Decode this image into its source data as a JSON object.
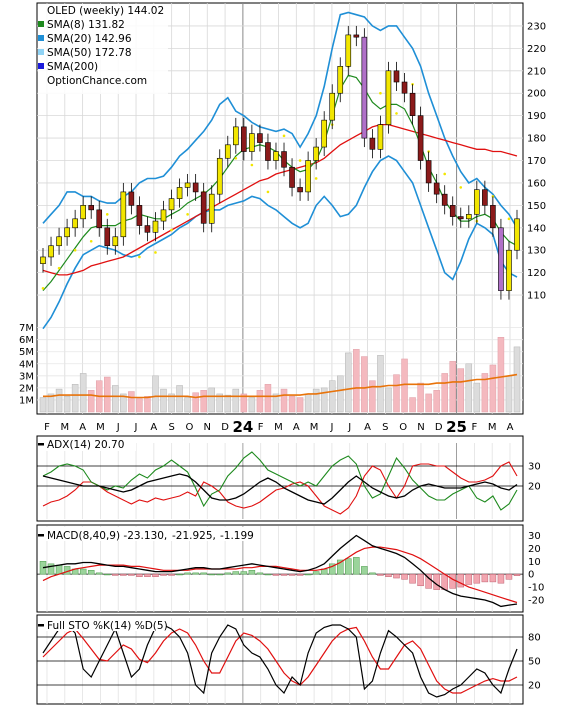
{
  "title": "OLED (weekly) 144.02",
  "legend": [
    {
      "label": "SMA(8) 131.82",
      "color": "#1e8a1e"
    },
    {
      "label": "SMA(20) 142.96",
      "color": "#1f8fd6"
    },
    {
      "label": "SMA(50) 172.78",
      "color": "#8fd3f5"
    },
    {
      "label": "SMA(200)",
      "color": "#1a1adb"
    }
  ],
  "source": "OptionChance.com",
  "colors": {
    "up": "#f2e600",
    "down": "#8b1a1a",
    "bb": "#1f8fd6",
    "sma8": "#1e8a1e",
    "sma40": "#e01010",
    "vol": "#f4b9bf",
    "vol_ma": "#e8730a",
    "psar": "#f2e600",
    "bear_candle": "#b070c8"
  },
  "chart_data": [
    {
      "type": "candlestick",
      "title": "OLED (weekly) 144.02",
      "x_tick_labels": [
        "F",
        "M",
        "A",
        "M",
        "J",
        "J",
        "A",
        "S",
        "O",
        "N",
        "D",
        "24",
        "F",
        "M",
        "A",
        "M",
        "J",
        "J",
        "A",
        "S",
        "O",
        "N",
        "D",
        "25",
        "F",
        "M",
        "A"
      ],
      "price_ticks": [
        110,
        120,
        130,
        140,
        150,
        160,
        170,
        180,
        190,
        200,
        210,
        220,
        230
      ],
      "ylim": [
        98,
        238
      ],
      "close": [
        127,
        132,
        136,
        140,
        144,
        150,
        148,
        140,
        132,
        136,
        156,
        150,
        141,
        138,
        143,
        148,
        153,
        158,
        160,
        156,
        142,
        155,
        171,
        177,
        185,
        174,
        182,
        178,
        170,
        174,
        167,
        158,
        156,
        170,
        176,
        188,
        200,
        212,
        226,
        225,
        180,
        175,
        186,
        210,
        205,
        200,
        190,
        170,
        160,
        155,
        150,
        145,
        144,
        146,
        157,
        150,
        140,
        112,
        130,
        144
      ],
      "sma8": [
        112,
        116,
        121,
        126,
        131,
        136,
        140,
        141,
        141,
        141,
        143,
        144,
        146,
        145,
        144,
        144,
        146,
        148,
        151,
        153,
        155,
        158,
        162,
        167,
        172,
        175,
        176,
        177,
        176,
        174,
        170,
        167,
        165,
        166,
        170,
        178,
        190,
        202,
        208,
        207,
        202,
        196,
        193,
        195,
        195,
        193,
        186,
        177,
        167,
        160,
        152,
        147,
        143,
        143,
        145,
        146,
        144,
        138,
        134,
        132
      ],
      "sma20": [
        131,
        133,
        135,
        137,
        140,
        142,
        143,
        142,
        141,
        140,
        140,
        140,
        140,
        141,
        142,
        143,
        145,
        147,
        150,
        153,
        156,
        158,
        161,
        163,
        165,
        167,
        168,
        169,
        170,
        170,
        170,
        169,
        168,
        168,
        170,
        174,
        180,
        186,
        192,
        196,
        199,
        201,
        202,
        202,
        200,
        197,
        193,
        188,
        183,
        178,
        172,
        166,
        160,
        155,
        150,
        147,
        145,
        144,
        143,
        143
      ],
      "sma40": [
        121,
        120,
        119,
        119,
        120,
        121,
        123,
        124,
        125,
        126,
        127,
        129,
        131,
        133,
        135,
        137,
        139,
        141,
        143,
        145,
        147,
        149,
        151,
        153,
        155,
        157,
        159,
        161,
        162,
        164,
        165,
        166,
        167,
        168,
        169,
        171,
        174,
        177,
        179,
        181,
        183,
        185,
        186,
        186,
        185,
        184,
        183,
        182,
        181,
        180,
        179,
        178,
        177,
        176,
        175,
        175,
        174,
        174,
        173,
        172
      ],
      "bb_upper": [
        142,
        146,
        150,
        156,
        156,
        154,
        154,
        152,
        151,
        151,
        154,
        156,
        160,
        162,
        162,
        163,
        167,
        172,
        175,
        179,
        183,
        188,
        195,
        198,
        192,
        190,
        187,
        185,
        184,
        183,
        184,
        182,
        176,
        182,
        190,
        203,
        220,
        235,
        236,
        235,
        234,
        230,
        228,
        230,
        230,
        225,
        220,
        212,
        200,
        190,
        180,
        172,
        165,
        160,
        162,
        158,
        155,
        150,
        146,
        140
      ],
      "bb_lower": [
        95,
        100,
        107,
        115,
        122,
        128,
        130,
        132,
        131,
        130,
        128,
        127,
        128,
        131,
        133,
        135,
        137,
        140,
        142,
        145,
        147,
        148,
        148,
        150,
        151,
        152,
        154,
        153,
        150,
        148,
        145,
        142,
        140,
        142,
        150,
        154,
        150,
        145,
        146,
        150,
        158,
        165,
        170,
        172,
        170,
        165,
        160,
        150,
        140,
        130,
        120,
        117,
        125,
        135,
        142,
        140,
        137,
        125,
        120,
        118
      ],
      "volume_ticks": [
        "1M",
        "2M",
        "3M",
        "4M",
        "5M",
        "6M",
        "7M"
      ],
      "volume_m": [
        1.2,
        1.5,
        1.9,
        1.3,
        2.3,
        3.2,
        1.8,
        2.6,
        2.9,
        2.2,
        1.5,
        1.7,
        1.1,
        1.3,
        3.0,
        1.9,
        1.5,
        2.2,
        1.2,
        1.6,
        1.8,
        2.0,
        1.5,
        1.4,
        1.9,
        1.5,
        1.2,
        1.8,
        2.3,
        1.5,
        1.9,
        1.3,
        1.2,
        1.5,
        1.9,
        2.0,
        2.6,
        3.0,
        4.9,
        5.2,
        4.6,
        2.6,
        4.7,
        2.0,
        3.1,
        4.4,
        1.2,
        2.4,
        1.5,
        1.8,
        3.2,
        4.2,
        3.6,
        4.0,
        2.4,
        3.2,
        3.9,
        6.2,
        3.0,
        5.4
      ],
      "volume_ma_m": [
        1.3,
        1.3,
        1.4,
        1.4,
        1.4,
        1.4,
        1.4,
        1.3,
        1.3,
        1.3,
        1.3,
        1.2,
        1.2,
        1.2,
        1.3,
        1.3,
        1.3,
        1.3,
        1.3,
        1.2,
        1.3,
        1.3,
        1.3,
        1.3,
        1.3,
        1.3,
        1.3,
        1.3,
        1.3,
        1.3,
        1.4,
        1.4,
        1.4,
        1.5,
        1.5,
        1.6,
        1.7,
        1.8,
        1.9,
        2.0,
        2.0,
        2.1,
        2.1,
        2.2,
        2.2,
        2.3,
        2.3,
        2.3,
        2.3,
        2.4,
        2.4,
        2.5,
        2.5,
        2.6,
        2.7,
        2.7,
        2.8,
        2.9,
        3.0,
        3.1
      ]
    },
    {
      "type": "line",
      "title": "ADX(14) 20.70",
      "yticks": [
        20,
        30
      ],
      "ylim": [
        5,
        40
      ],
      "series_colors": {
        "adx": "#000000",
        "plus_di": "#1e8a1e",
        "minus_di": "#e01010"
      },
      "adx": [
        25,
        24,
        23,
        22,
        21,
        20,
        20,
        20,
        19,
        18,
        17,
        18,
        20,
        22,
        23,
        24,
        25,
        26,
        25,
        22,
        18,
        14,
        13,
        13,
        14,
        16,
        19,
        22,
        24,
        22,
        19,
        17,
        15,
        13,
        12,
        11,
        14,
        18,
        22,
        25,
        22,
        19,
        17,
        15,
        14,
        15,
        18,
        20,
        21,
        20,
        19,
        19,
        19,
        20,
        21,
        22,
        21,
        19,
        18,
        20.7
      ],
      "plus_di": [
        25,
        27,
        30,
        31,
        30,
        28,
        22,
        20,
        18,
        20,
        19,
        23,
        26,
        24,
        28,
        30,
        33,
        30,
        27,
        19,
        10,
        16,
        18,
        25,
        29,
        34,
        37,
        33,
        28,
        26,
        24,
        22,
        20,
        22,
        20,
        25,
        30,
        33,
        35,
        31,
        20,
        14,
        16,
        25,
        34,
        29,
        23,
        19,
        15,
        13,
        13,
        16,
        18,
        20,
        14,
        12,
        15,
        8,
        11,
        18
      ],
      "minus_di": [
        10,
        12,
        13,
        15,
        18,
        22,
        22,
        20,
        17,
        15,
        13,
        11,
        13,
        12,
        14,
        13,
        14,
        15,
        17,
        15,
        22,
        20,
        17,
        12,
        10,
        9,
        10,
        12,
        15,
        18,
        19,
        21,
        22,
        20,
        15,
        10,
        8,
        6,
        9,
        15,
        25,
        30,
        28,
        20,
        14,
        20,
        30,
        31,
        31,
        30,
        30,
        27,
        24,
        22,
        22,
        23,
        25,
        30,
        32,
        25
      ]
    },
    {
      "type": "line",
      "title": "MACD(8,40,9) -23.130,",
      "values_text": [
        "-21.925,",
        "-1.199"
      ],
      "value_colors": [
        "#e01010",
        "#1a1adb"
      ],
      "yticks": [
        -20,
        -10,
        0,
        10,
        20,
        30
      ],
      "ylim": [
        -27,
        35
      ],
      "macd": [
        5,
        6,
        7,
        8,
        8,
        9,
        9,
        8,
        7,
        6,
        6,
        5,
        4,
        3,
        2,
        2,
        2,
        3,
        4,
        5,
        5,
        4,
        4,
        5,
        6,
        7,
        8,
        7,
        6,
        5,
        4,
        3,
        2,
        3,
        5,
        8,
        14,
        20,
        25,
        30,
        26,
        22,
        20,
        18,
        16,
        13,
        8,
        3,
        -3,
        -8,
        -12,
        -15,
        -17,
        -18,
        -19,
        -20,
        -22,
        -25,
        -24,
        -23.13
      ],
      "signal": [
        -5,
        -2,
        0,
        2,
        4,
        5,
        6,
        7,
        7,
        7,
        7,
        6,
        6,
        5,
        4,
        3,
        3,
        3,
        3,
        4,
        4,
        4,
        4,
        4,
        4,
        5,
        5,
        6,
        6,
        6,
        5,
        4,
        3,
        3,
        3,
        4,
        6,
        9,
        13,
        17,
        20,
        21,
        21,
        20,
        19,
        17,
        15,
        12,
        8,
        4,
        0,
        -4,
        -7,
        -10,
        -12,
        -14,
        -16,
        -18,
        -20,
        -21.925
      ],
      "histogram": [
        10,
        8,
        7,
        6,
        4,
        4,
        3,
        1,
        0,
        -1,
        -1,
        -1,
        -2,
        -2,
        -2,
        -1,
        -1,
        0,
        1,
        1,
        1,
        0,
        0,
        1,
        2,
        2,
        3,
        1,
        0,
        -1,
        -1,
        -1,
        -1,
        0,
        2,
        4,
        8,
        11,
        12,
        13,
        6,
        1,
        -1,
        -2,
        -3,
        -4,
        -7,
        -9,
        -11,
        -12,
        -12,
        -11,
        -10,
        -8,
        -7,
        -6,
        -6,
        -7,
        -4,
        -1.199
      ]
    },
    {
      "type": "line",
      "title": "Full STO %K(14) %D(5)",
      "yticks": [
        20,
        50,
        80
      ],
      "ylim": [
        0,
        100
      ],
      "k": [
        60,
        75,
        90,
        95,
        85,
        40,
        30,
        50,
        70,
        90,
        60,
        30,
        40,
        70,
        92,
        95,
        90,
        80,
        60,
        20,
        10,
        60,
        80,
        95,
        90,
        70,
        60,
        55,
        40,
        20,
        10,
        30,
        20,
        60,
        85,
        92,
        95,
        95,
        90,
        80,
        15,
        25,
        60,
        88,
        80,
        70,
        60,
        30,
        10,
        5,
        8,
        15,
        20,
        30,
        40,
        35,
        20,
        10,
        40,
        65
      ],
      "d": [
        55,
        65,
        75,
        85,
        90,
        78,
        65,
        52,
        50,
        60,
        70,
        65,
        52,
        48,
        60,
        75,
        85,
        90,
        85,
        70,
        50,
        35,
        35,
        55,
        75,
        85,
        82,
        75,
        65,
        50,
        35,
        25,
        20,
        30,
        45,
        60,
        75,
        85,
        90,
        92,
        75,
        55,
        40,
        40,
        55,
        70,
        75,
        65,
        45,
        25,
        15,
        10,
        10,
        15,
        20,
        25,
        28,
        25,
        25,
        30
      ],
      "overbought": 80,
      "oversold": 20
    }
  ]
}
